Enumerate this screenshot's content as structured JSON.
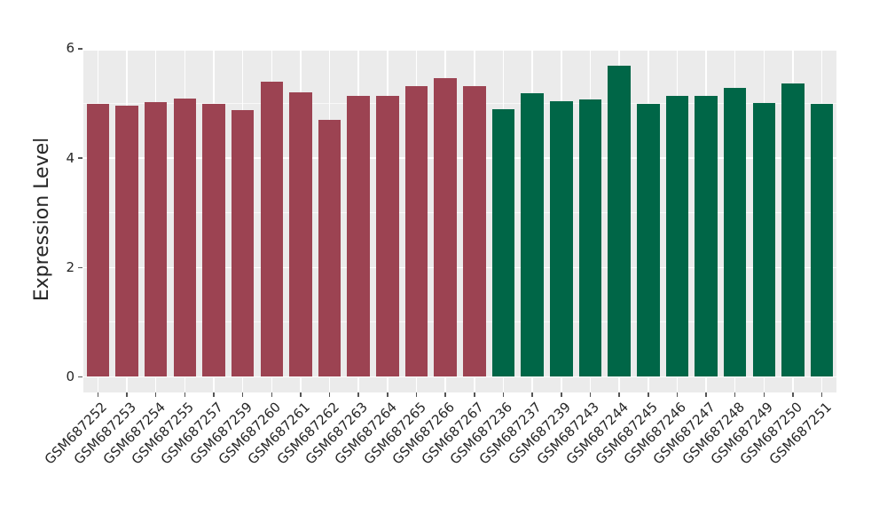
{
  "chart_data": {
    "type": "bar",
    "title": "",
    "xlabel": "",
    "ylabel": "Expression Level",
    "ylim": [
      0,
      6
    ],
    "yticks": [
      0,
      2,
      4,
      6
    ],
    "minor_gridlines": [
      1,
      3,
      5
    ],
    "grid": true,
    "legend_position": "none",
    "panel_background": "#EBEBEB",
    "gridline_color": "#FFFFFF",
    "categories": [
      "GSM687252",
      "GSM687253",
      "GSM687254",
      "GSM687255",
      "GSM687257",
      "GSM687259",
      "GSM687260",
      "GSM687261",
      "GSM687262",
      "GSM687263",
      "GSM687264",
      "GSM687265",
      "GSM687266",
      "GSM687267",
      "GSM687236",
      "GSM687237",
      "GSM687239",
      "GSM687243",
      "GSM687244",
      "GSM687245",
      "GSM687246",
      "GSM687247",
      "GSM687248",
      "GSM687249",
      "GSM687250",
      "GSM687251"
    ],
    "values": [
      4.99,
      4.96,
      5.03,
      5.09,
      4.99,
      4.88,
      5.4,
      5.2,
      4.7,
      5.14,
      5.13,
      5.32,
      5.46,
      5.32,
      4.89,
      5.19,
      5.04,
      5.07,
      5.69,
      4.99,
      5.14,
      5.14,
      5.28,
      5.01,
      5.36,
      4.99
    ],
    "groups": [
      "g1",
      "g1",
      "g1",
      "g1",
      "g1",
      "g1",
      "g1",
      "g1",
      "g1",
      "g1",
      "g1",
      "g1",
      "g1",
      "g1",
      "g2",
      "g2",
      "g2",
      "g2",
      "g2",
      "g2",
      "g2",
      "g2",
      "g2",
      "g2",
      "g2",
      "g2"
    ],
    "group_colors": {
      "g1": "#9C4352",
      "g2": "#006647"
    }
  }
}
